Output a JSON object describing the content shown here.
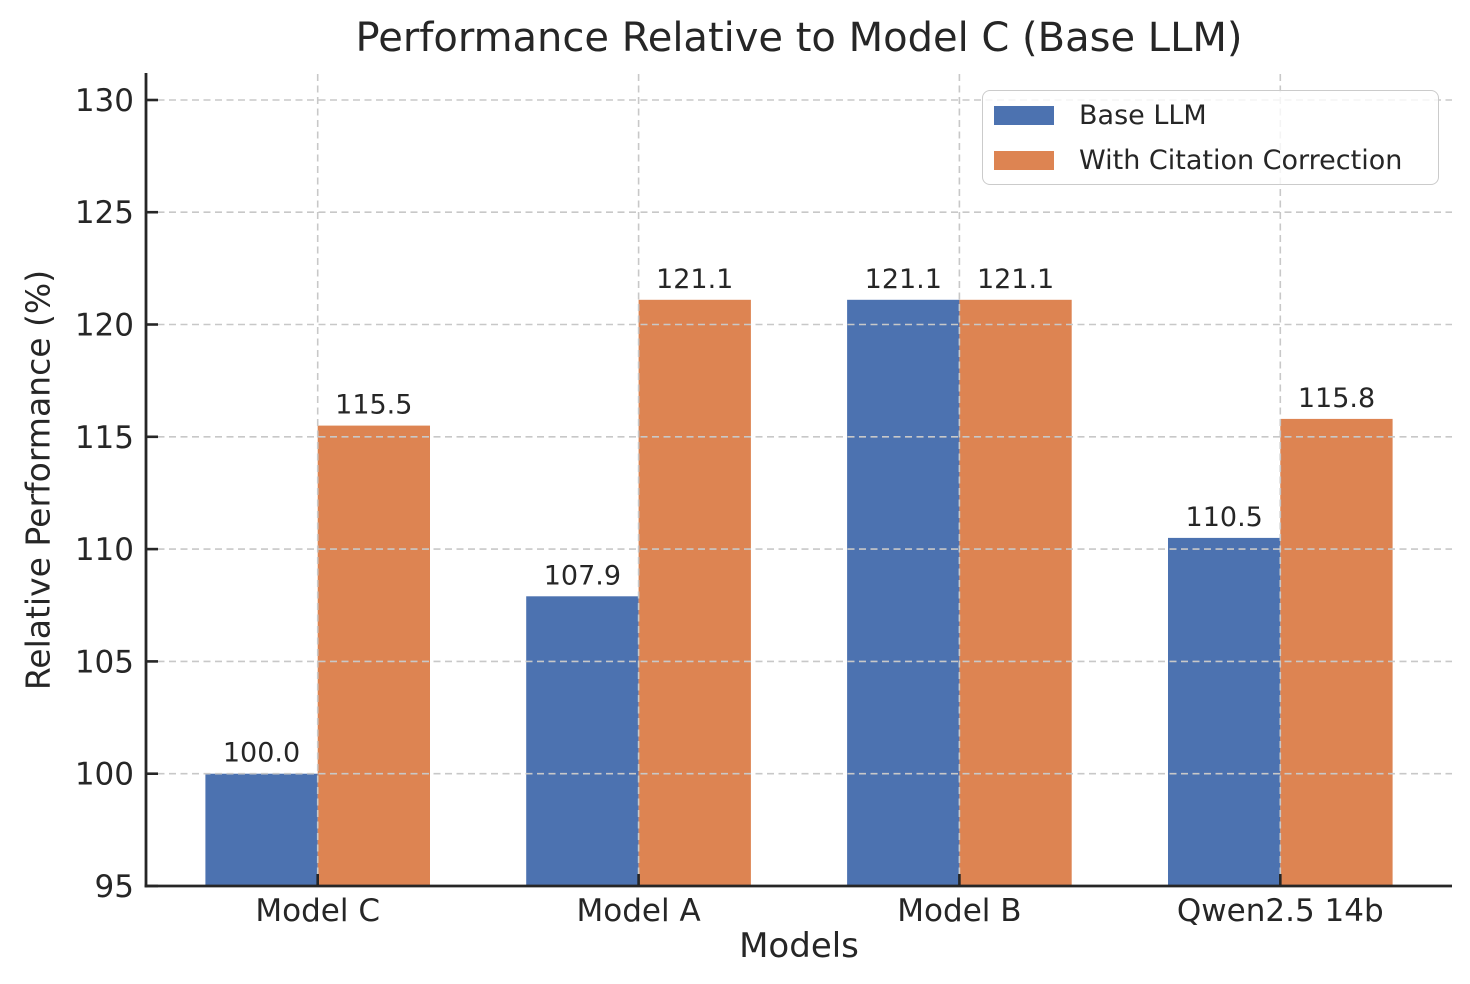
{
  "chart_data": {
    "type": "bar",
    "title": "Performance Relative to Model C (Base LLM)",
    "xlabel": "Models",
    "ylabel": "Relative Performance (%)",
    "categories": [
      "Model C",
      "Model A",
      "Model B",
      "Qwen2.5 14b"
    ],
    "series": [
      {
        "name": "Base LLM",
        "color": "#4C72B0",
        "values": [
          100.0,
          107.9,
          121.1,
          110.5
        ]
      },
      {
        "name": "With Citation Correction",
        "color": "#DD8452",
        "values": [
          115.5,
          121.1,
          121.1,
          115.8
        ]
      }
    ],
    "value_labels": [
      "100.0",
      "115.5",
      "107.9",
      "121.1",
      "121.1",
      "121.1",
      "110.5",
      "115.8"
    ],
    "ylim": [
      95,
      131.2
    ],
    "y_ticks": [
      95,
      100,
      105,
      110,
      115,
      120,
      125,
      130
    ],
    "grid": "dashed horizontal at y ticks and vertical at category centers, drawn above bars",
    "legend_position": "upper right",
    "bar_group_width_fraction": 0.7,
    "colors": {
      "text": "#262626",
      "spine": "#262626",
      "grid": "#c8c8c8",
      "background": "#ffffff"
    }
  }
}
